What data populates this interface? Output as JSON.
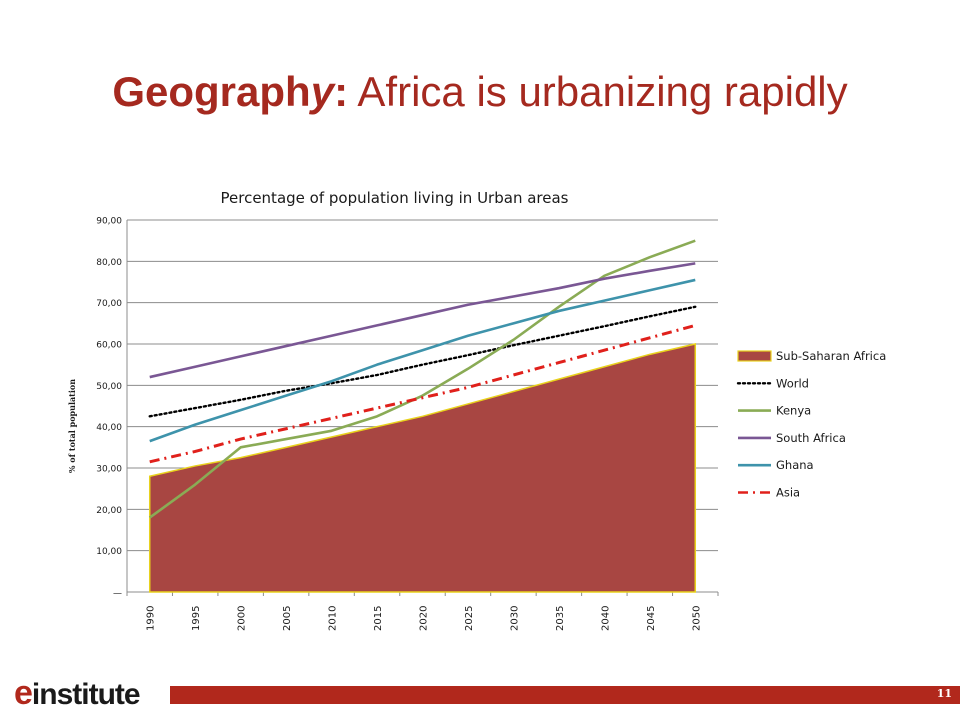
{
  "slide": {
    "title_keyword_pre": "Geograph",
    "title_keyword_em": "y",
    "title_colon": ":",
    "title_rest": " Africa is urbanizing rapidly",
    "page_number": "11",
    "logo_prefix": "e",
    "logo_text": "institute",
    "accent_color": "#b1281c"
  },
  "chart_data": {
    "type": "line",
    "title": "Percentage of population living in Urban areas",
    "ylabel": "% of total population",
    "xlabel": "",
    "categories": [
      "1990",
      "1995",
      "2000",
      "2005",
      "2010",
      "2015",
      "2020",
      "2025",
      "2030",
      "2035",
      "2040",
      "2045",
      "2050"
    ],
    "ylim": [
      0,
      90
    ],
    "yticks": [
      "—",
      "10,00",
      "20,00",
      "30,00",
      "40,00",
      "50,00",
      "60,00",
      "70,00",
      "80,00",
      "90,00"
    ],
    "grid": true,
    "legend_position": "right",
    "series": [
      {
        "name": "Sub-Saharan Africa",
        "style": "area",
        "color": "#a84642",
        "stroke": "#e8d21d",
        "values": [
          28,
          30.5,
          32.5,
          35,
          37.5,
          40,
          42.5,
          45.5,
          48.5,
          51.5,
          54.5,
          57.5,
          60
        ]
      },
      {
        "name": "World",
        "style": "dotted",
        "color": "#000000",
        "values": [
          42.5,
          44.5,
          46.5,
          48.7,
          50.5,
          52.5,
          55,
          57.3,
          59.7,
          62,
          64.3,
          66.7,
          69
        ]
      },
      {
        "name": "Kenya",
        "style": "solid",
        "color": "#8aab55",
        "values": [
          18,
          26,
          35,
          37,
          39,
          42.5,
          47.5,
          54,
          61,
          69,
          76.5,
          81,
          85
        ]
      },
      {
        "name": "South Africa",
        "style": "solid",
        "color": "#7a5794",
        "values": [
          52,
          54.5,
          57,
          59.5,
          62,
          64.5,
          67,
          69.5,
          71.5,
          73.5,
          75.8,
          77.7,
          79.5
        ]
      },
      {
        "name": "Ghana",
        "style": "solid",
        "color": "#3e93ab",
        "values": [
          36.5,
          40.5,
          44,
          47.5,
          51,
          55,
          58.5,
          62,
          65,
          68,
          70.5,
          73,
          75.5
        ]
      },
      {
        "name": "Asia",
        "style": "dashdot",
        "color": "#e0201b",
        "values": [
          31.5,
          34,
          37,
          39.5,
          42,
          44.5,
          47,
          49.5,
          52.5,
          55.5,
          58.5,
          61.5,
          64.5
        ]
      }
    ]
  }
}
